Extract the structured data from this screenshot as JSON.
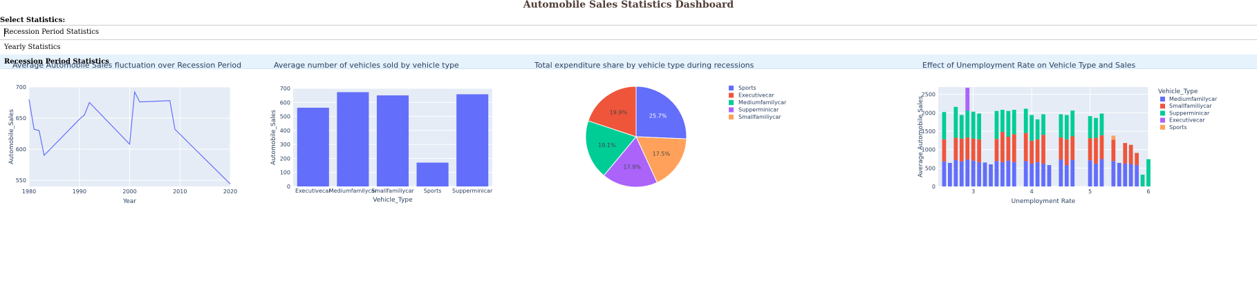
{
  "page": {
    "title": "Automobile Sales Statistics Dashboard",
    "select_label": "Select Statistics:"
  },
  "dropdown": {
    "value": "Recession Period Statistics",
    "options": [
      {
        "label": "Yearly Statistics",
        "selected": false
      },
      {
        "label": "Recession Period Statistics",
        "selected": true
      }
    ],
    "highlight_color": "#E6F2FC"
  },
  "colors": {
    "title": "#503D36",
    "plot_bg": "#E5ECF6",
    "series": [
      "#636EFA",
      "#EF553B",
      "#00CC96",
      "#AB63FA",
      "#FFA15A"
    ]
  },
  "chart_data": [
    {
      "type": "line",
      "title": "Average Automobile Sales fluctuation over Recession Period",
      "xlabel": "Year",
      "ylabel": "Automobile_Sales",
      "xlim": [
        1980,
        2020
      ],
      "ylim": [
        540,
        700
      ],
      "xticks": [
        1980,
        1990,
        2000,
        2010,
        2020
      ],
      "yticks": [
        550,
        600,
        650,
        700
      ],
      "x": [
        1980,
        1981,
        1982,
        1983,
        1990,
        1991,
        1992,
        2000,
        2001,
        2002,
        2008,
        2009,
        2020
      ],
      "y": [
        680,
        632,
        630,
        590,
        648,
        655,
        675,
        608,
        692,
        676,
        678,
        632,
        544
      ],
      "grid": true
    },
    {
      "type": "bar",
      "title": "Average number of vehicles sold by vehicle type",
      "xlabel": "Vehicle_Type",
      "ylabel": "Automobile_Sales",
      "ylim": [
        0,
        700
      ],
      "yticks": [
        0,
        100,
        200,
        300,
        400,
        500,
        600,
        700
      ],
      "categories": [
        "Executivecar",
        "Mediumfamilycar",
        "Smallfamiliycar",
        "Sports",
        "Supperminicar"
      ],
      "values": [
        562,
        673,
        650,
        170,
        658
      ],
      "grid": true
    },
    {
      "type": "pie",
      "title": "Total expenditure share by vehicle type during recessions",
      "labels": [
        "Sports",
        "Executivecar",
        "Mediumfamilycar",
        "Supperminicar",
        "Smallfamiliycar"
      ],
      "values": [
        25.7,
        19.9,
        19.1,
        17.9,
        17.5
      ],
      "display_labels": [
        "25.7%",
        "19.9%",
        "19.1%",
        "17.9%",
        "17.5%"
      ],
      "legend": "right"
    },
    {
      "type": "bar",
      "stacked": true,
      "title": "Effect of Unemployment Rate on Vehicle Type and Sales",
      "xlabel": "Unemployment Rate",
      "ylabel": "Average Automobile Sales",
      "xlim": [
        2.4,
        6.0
      ],
      "ylim": [
        0,
        2700
      ],
      "xticks": [
        3,
        4,
        5,
        6
      ],
      "yticks": [
        0,
        500,
        1000,
        1500,
        2000,
        2500
      ],
      "legend_title": "Vehicle_Type",
      "legend": "top-right",
      "bar_width": 0.068,
      "x": [
        2.5,
        2.6,
        2.7,
        2.8,
        2.9,
        3.0,
        3.1,
        3.2,
        3.3,
        3.4,
        3.5,
        3.6,
        3.7,
        3.8,
        3.9,
        4.0,
        4.1,
        4.2,
        4.3,
        4.4,
        4.5,
        4.6,
        4.7,
        4.8,
        4.9,
        5.0,
        5.1,
        5.2,
        5.3,
        5.4,
        5.5,
        5.6,
        5.7,
        5.8,
        5.9,
        6.0
      ],
      "series": [
        {
          "name": "Mediumfamilycar",
          "values": [
            680,
            640,
            720,
            680,
            730,
            700,
            660,
            650,
            600,
            690,
            660,
            700,
            660,
            0,
            690,
            620,
            660,
            620,
            580,
            0,
            730,
            580,
            720,
            0,
            0,
            710,
            620,
            740,
            0,
            690,
            640,
            620,
            610,
            580,
            0,
            0
          ]
        },
        {
          "name": "Smallfamiliycar",
          "values": [
            600,
            0,
            600,
            620,
            600,
            600,
            620,
            0,
            0,
            600,
            820,
            650,
            760,
            0,
            760,
            620,
            620,
            780,
            0,
            0,
            600,
            700,
            640,
            0,
            0,
            600,
            700,
            650,
            0,
            580,
            0,
            560,
            520,
            330,
            0,
            0
          ]
        },
        {
          "name": "Supperminicar",
          "values": [
            740,
            0,
            840,
            640,
            730,
            730,
            700,
            0,
            0,
            760,
            600,
            700,
            660,
            0,
            660,
            700,
            540,
            560,
            0,
            0,
            630,
            660,
            700,
            0,
            0,
            600,
            540,
            590,
            0,
            0,
            0,
            0,
            0,
            0,
            320,
            740
          ]
        },
        {
          "name": "Executivecar",
          "values": [
            0,
            0,
            0,
            0,
            620,
            0,
            0,
            0,
            0,
            0,
            0,
            0,
            0,
            0,
            0,
            0,
            0,
            0,
            0,
            0,
            0,
            0,
            0,
            0,
            0,
            0,
            0,
            0,
            0,
            0,
            0,
            0,
            0,
            0,
            0,
            0
          ]
        },
        {
          "name": "Sports",
          "values": [
            0,
            0,
            0,
            0,
            0,
            0,
            0,
            0,
            0,
            0,
            0,
            0,
            0,
            0,
            0,
            0,
            0,
            0,
            0,
            0,
            0,
            0,
            0,
            0,
            0,
            0,
            0,
            0,
            0,
            110,
            0,
            0,
            0,
            0,
            0,
            0
          ]
        }
      ],
      "grid": true
    }
  ]
}
